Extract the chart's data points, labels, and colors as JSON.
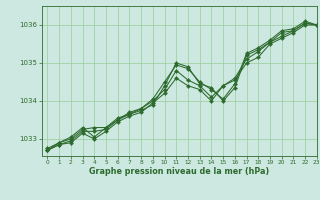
{
  "title": "Graphe pression niveau de la mer (hPa)",
  "bg_color": "#cce8e0",
  "grid_color": "#99cc99",
  "line_color": "#2d6a2d",
  "xlim": [
    -0.5,
    23
  ],
  "ylim": [
    1032.55,
    1036.5
  ],
  "yticks": [
    1033,
    1034,
    1035,
    1036
  ],
  "xticks": [
    0,
    1,
    2,
    3,
    4,
    5,
    6,
    7,
    8,
    9,
    10,
    11,
    12,
    13,
    14,
    15,
    16,
    17,
    18,
    19,
    20,
    21,
    22,
    23
  ],
  "line1_x": [
    0,
    1,
    2,
    3,
    4,
    5,
    6,
    7,
    8,
    9,
    10,
    11,
    12,
    13,
    14,
    15,
    16,
    17,
    18,
    19,
    20,
    21,
    22,
    23
  ],
  "line1_y": [
    1032.7,
    1032.85,
    1032.95,
    1033.2,
    1033.2,
    1033.25,
    1033.5,
    1033.65,
    1033.75,
    1033.9,
    1034.4,
    1035.0,
    1034.9,
    1034.45,
    1034.35,
    1034.0,
    1034.35,
    1035.2,
    1035.35,
    1035.55,
    1035.8,
    1035.85,
    1036.05,
    1036.0
  ],
  "line2_x": [
    0,
    1,
    2,
    3,
    4,
    5,
    6,
    7,
    8,
    9,
    10,
    11,
    12,
    13,
    14,
    15,
    16,
    17,
    18,
    19,
    20,
    21,
    22,
    23
  ],
  "line2_y": [
    1032.7,
    1032.9,
    1033.0,
    1033.25,
    1033.3,
    1033.3,
    1033.55,
    1033.65,
    1033.8,
    1034.05,
    1034.5,
    1034.95,
    1034.85,
    1034.5,
    1034.3,
    1034.05,
    1034.45,
    1035.25,
    1035.4,
    1035.6,
    1035.85,
    1035.9,
    1036.1,
    1036.0
  ],
  "line3_x": [
    0,
    1,
    2,
    3,
    4,
    5,
    6,
    7,
    8,
    9,
    10,
    11,
    12,
    13,
    14,
    15,
    16,
    17,
    18,
    19,
    20,
    21,
    22,
    23
  ],
  "line3_y": [
    1032.75,
    1032.9,
    1033.05,
    1033.3,
    1033.05,
    1033.3,
    1033.5,
    1033.7,
    1033.8,
    1034.0,
    1034.3,
    1034.8,
    1034.55,
    1034.4,
    1034.1,
    1034.4,
    1034.6,
    1035.1,
    1035.3,
    1035.55,
    1035.7,
    1035.85,
    1036.05,
    1036.0
  ],
  "line4_x": [
    0,
    1,
    2,
    3,
    4,
    5,
    6,
    7,
    8,
    9,
    10,
    11,
    12,
    13,
    14,
    15,
    16,
    17,
    18,
    19,
    20,
    21,
    22,
    23
  ],
  "line4_y": [
    1032.7,
    1032.85,
    1032.9,
    1033.15,
    1033.0,
    1033.2,
    1033.45,
    1033.6,
    1033.7,
    1033.95,
    1034.2,
    1034.6,
    1034.4,
    1034.3,
    1034.0,
    1034.4,
    1034.55,
    1035.0,
    1035.15,
    1035.5,
    1035.65,
    1035.8,
    1036.0,
    1036.0
  ]
}
